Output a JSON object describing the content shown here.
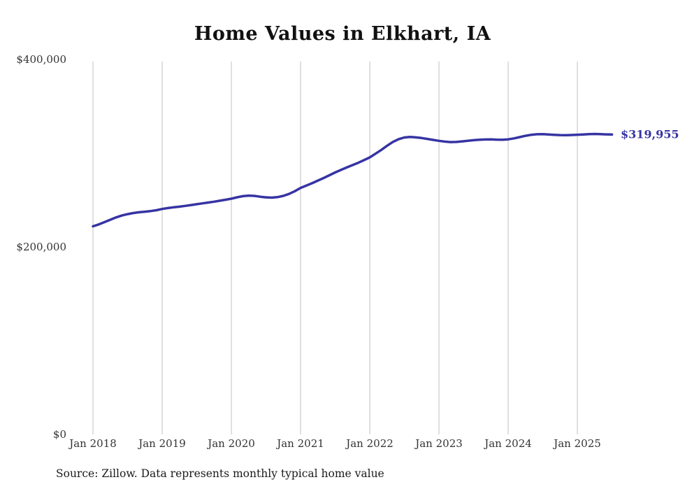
{
  "page": {
    "source_note": "Source: Zillow. Data represents monthly typical home value"
  },
  "chart_data": {
    "type": "line",
    "title": "Home Values in Elkhart, IA",
    "x_start": "Jan 2018",
    "x_freq": "monthly",
    "x_tick_labels": [
      "Jan 2018",
      "Jan 2019",
      "Jan 2020",
      "Jan 2021",
      "Jan 2022",
      "Jan 2023",
      "Jan 2024",
      "Jan 2025"
    ],
    "y_ticks": [
      {
        "label": "$0",
        "value": 0
      },
      {
        "label": "$200,000",
        "value": 200000
      },
      {
        "label": "$400,000",
        "value": 400000
      }
    ],
    "ylim": [
      0,
      400000
    ],
    "grid": "vertical-only",
    "legend": "none",
    "line_color": "#3634a3",
    "grid_color": "#cccccc",
    "value_label": "$319,955",
    "final_value": 319955,
    "series": [
      {
        "name": "Typical home value",
        "values": [
          222000,
          224000,
          226500,
          229000,
          231500,
          233500,
          235000,
          236200,
          237000,
          237600,
          238300,
          239200,
          240500,
          241500,
          242300,
          243000,
          243800,
          244700,
          245600,
          246500,
          247400,
          248300,
          249300,
          250400,
          251500,
          253000,
          254200,
          254800,
          254500,
          253600,
          252900,
          252600,
          253100,
          254500,
          256600,
          259500,
          263000,
          265500,
          268000,
          270800,
          273500,
          276500,
          279500,
          282200,
          284800,
          287300,
          289800,
          292600,
          295500,
          299500,
          303500,
          308000,
          312000,
          315000,
          316800,
          317300,
          316900,
          316200,
          315200,
          314200,
          313200,
          312400,
          311900,
          312000,
          312600,
          313300,
          313900,
          314300,
          314600,
          314700,
          314500,
          314400,
          314800,
          315800,
          317200,
          318600,
          319600,
          320200,
          320300,
          320000,
          319600,
          319300,
          319200,
          319400,
          319700,
          320000,
          320300,
          320500,
          320300,
          320100,
          319955
        ]
      }
    ],
    "source": "Source: Zillow. Data represents monthly typical home value"
  }
}
